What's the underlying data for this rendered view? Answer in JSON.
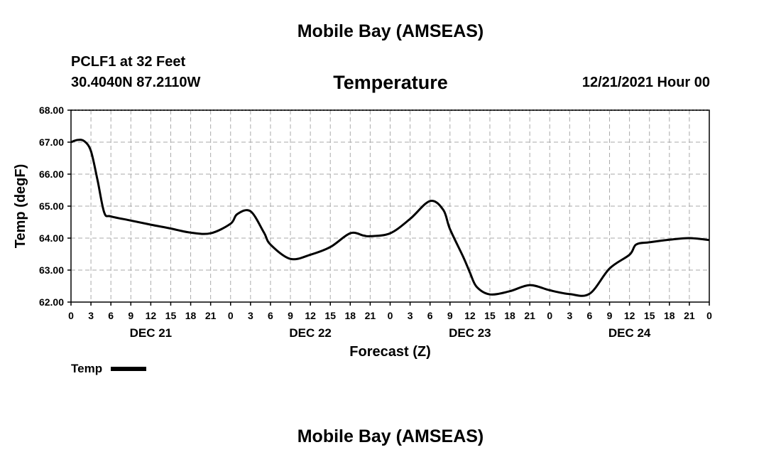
{
  "header": {
    "title": "Mobile Bay (AMSEAS)",
    "station_name": "PCLF1 at 32 Feet",
    "station_coords": "30.4040N  87.2110W",
    "run_time": "12/21/2021 Hour 00"
  },
  "footer": {
    "title": "Mobile Bay (AMSEAS)"
  },
  "chart_data": {
    "type": "line",
    "title": "Temperature",
    "xlabel": "Forecast (Z)",
    "ylabel": "Temp (degF)",
    "ylim": [
      62.0,
      68.0
    ],
    "yticks": [
      "62.00",
      "63.00",
      "64.00",
      "65.00",
      "66.00",
      "67.00",
      "68.00"
    ],
    "xlim": [
      0,
      96
    ],
    "x_unit": "forecast hour from 12/21/2021 00Z",
    "xtick_labels": [
      "0",
      "3",
      "6",
      "9",
      "12",
      "15",
      "18",
      "21",
      "0",
      "3",
      "6",
      "9",
      "12",
      "15",
      "18",
      "21",
      "0",
      "3",
      "6",
      "9",
      "12",
      "15",
      "18",
      "21",
      "0",
      "3",
      "6",
      "9",
      "12",
      "15",
      "18",
      "21",
      "0"
    ],
    "day_labels": [
      "DEC 21",
      "DEC 22",
      "DEC 23",
      "DEC 24"
    ],
    "grid": true,
    "legend": "bottom-left",
    "series": [
      {
        "name": "Temp",
        "color": "#000000",
        "x": [
          0,
          1,
          2,
          3,
          4,
          5,
          6,
          9,
          12,
          15,
          18,
          21,
          24,
          25,
          27,
          29,
          30,
          33,
          36,
          39,
          42,
          44,
          45,
          48,
          51,
          54,
          56,
          57,
          59,
          60,
          61,
          63,
          66,
          69,
          72,
          75,
          78,
          81,
          84,
          85,
          87,
          90,
          93,
          96
        ],
        "values": [
          67.0,
          67.07,
          67.03,
          66.72,
          65.8,
          64.8,
          64.68,
          64.55,
          64.42,
          64.3,
          64.17,
          64.15,
          64.45,
          64.75,
          64.84,
          64.18,
          63.8,
          63.35,
          63.48,
          63.72,
          64.15,
          64.08,
          64.06,
          64.15,
          64.6,
          65.16,
          64.88,
          64.28,
          63.41,
          62.92,
          62.48,
          62.24,
          62.34,
          62.53,
          62.37,
          62.25,
          62.26,
          63.05,
          63.48,
          63.8,
          63.87,
          63.95,
          64.0,
          63.94
        ]
      }
    ]
  }
}
